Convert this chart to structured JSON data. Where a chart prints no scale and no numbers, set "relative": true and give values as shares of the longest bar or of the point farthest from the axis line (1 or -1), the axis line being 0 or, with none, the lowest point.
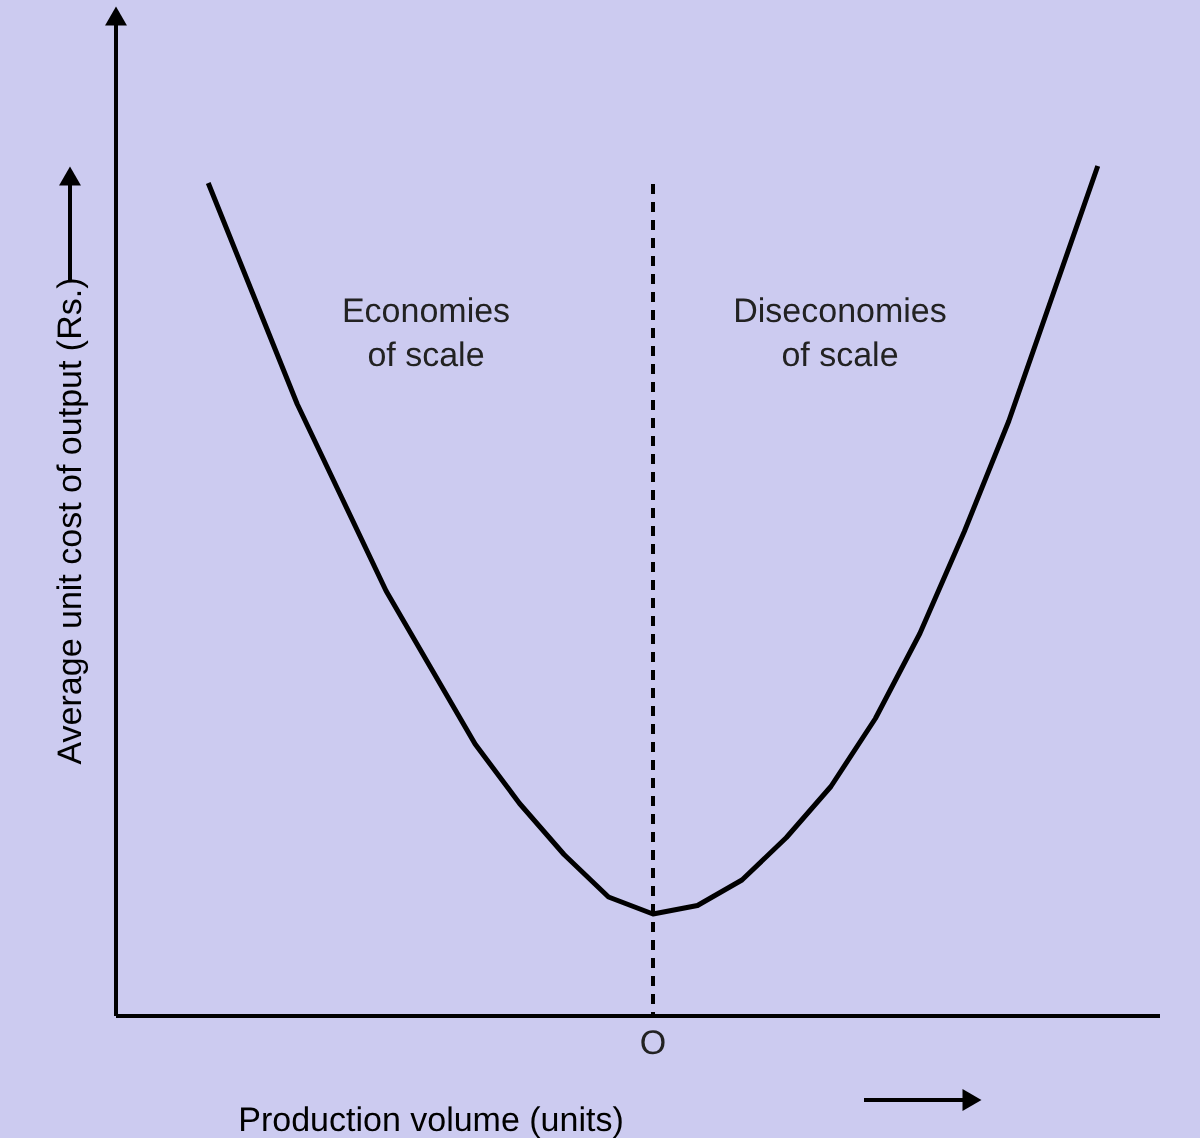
{
  "chart_data": {
    "type": "line",
    "relative": true,
    "xlabel": "Production volume (units)",
    "ylabel": "Average unit cost of output (Rs.)",
    "categories": [
      null,
      null,
      null,
      null,
      null,
      null,
      null,
      null,
      null,
      null,
      null,
      null,
      null,
      null,
      null,
      null,
      null,
      null,
      null,
      null,
      null
    ],
    "series": [
      {
        "color": "#000000",
        "values": [
          0.98,
          0.85,
          0.72,
          0.61,
          0.5,
          0.41,
          0.32,
          0.25,
          0.19,
          0.14,
          0.12,
          0.13,
          0.16,
          0.21,
          0.27,
          0.35,
          0.45,
          0.57,
          0.7,
          0.85,
          1.0
        ]
      }
    ],
    "annotations": [
      "Economies\nof scale",
      "Diseconomies\nof scale",
      "O"
    ],
    "grid": false,
    "marker": "none",
    "line_style": "solid"
  }
}
